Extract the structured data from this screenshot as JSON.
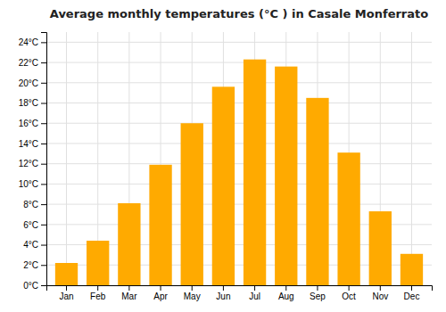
{
  "chart_data": {
    "type": "bar",
    "title": "Average monthly temperatures (°C ) in Casale Monferrato",
    "categories": [
      "Jan",
      "Feb",
      "Mar",
      "Apr",
      "May",
      "Jun",
      "Jul",
      "Aug",
      "Sep",
      "Oct",
      "Nov",
      "Dec"
    ],
    "values": [
      2.2,
      4.4,
      8.1,
      11.9,
      16.0,
      19.6,
      22.3,
      21.6,
      18.5,
      13.1,
      7.3,
      3.1
    ],
    "color": "#FFAA00",
    "ylim": [
      0,
      25
    ],
    "yticks": [
      {
        "value": 0,
        "label": "0°C"
      },
      {
        "value": 2,
        "label": "2°C"
      },
      {
        "value": 4,
        "label": "4°C"
      },
      {
        "value": 6,
        "label": "6°C"
      },
      {
        "value": 8,
        "label": "8°C"
      },
      {
        "value": 10,
        "label": "10°C"
      },
      {
        "value": 12,
        "label": "12°C"
      },
      {
        "value": 14,
        "label": "14°C"
      },
      {
        "value": 16,
        "label": "16°C"
      },
      {
        "value": 18,
        "label": "18°C"
      },
      {
        "value": 20,
        "label": "20°C"
      },
      {
        "value": 22,
        "label": "22°C"
      },
      {
        "value": 24,
        "label": "24°C"
      }
    ],
    "grid": true
  }
}
